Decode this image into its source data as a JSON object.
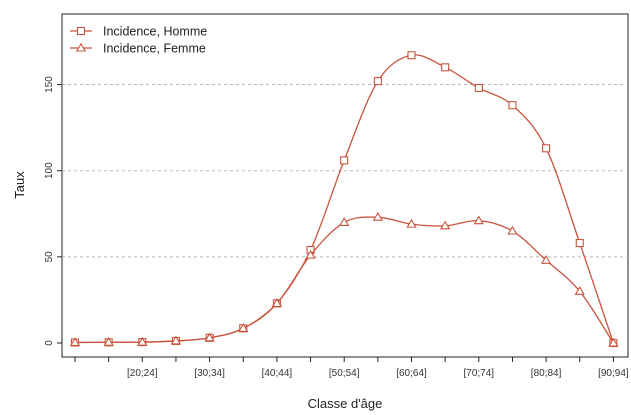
{
  "chart_data": {
    "type": "line",
    "xlabel": "Classe d'âge",
    "ylabel": "Taux",
    "ylim": [
      -5,
      183
    ],
    "yticks": [
      0,
      50,
      100,
      150
    ],
    "grid": "horizontal-dashed",
    "legend_position": "top-left",
    "colors": {
      "series": "#c8553d",
      "grid": "#b8b8b8",
      "frame": "#222222"
    },
    "x_tick_labels": [
      {
        "pos": 1,
        "label": "[20;24]"
      },
      {
        "pos": 2,
        "label": "[30;34]"
      },
      {
        "pos": 3,
        "label": "[40;44]"
      },
      {
        "pos": 4,
        "label": "[50;54]"
      },
      {
        "pos": 5,
        "label": "[60;64]"
      },
      {
        "pos": 6,
        "label": "[70;74]"
      },
      {
        "pos": 7,
        "label": "[80;84]"
      },
      {
        "pos": 8,
        "label": "[90;94]"
      }
    ],
    "x": [
      0,
      0.5,
      1,
      1.5,
      2,
      2.5,
      3,
      3.5,
      4,
      4.5,
      5,
      5.5,
      6,
      6.5,
      7,
      7.5,
      8
    ],
    "series": [
      {
        "name": "Incidence, Homme",
        "marker": "square",
        "values": [
          0.3,
          0.4,
          0.5,
          1.2,
          3,
          8.5,
          23,
          54,
          106,
          152,
          167,
          160,
          148,
          138,
          113,
          58,
          0
        ]
      },
      {
        "name": "Incidence, Femme",
        "marker": "triangle",
        "values": [
          0.3,
          0.4,
          0.5,
          1.2,
          3,
          8.5,
          23,
          51,
          70,
          73,
          69,
          68,
          71,
          65,
          48,
          30,
          0
        ]
      }
    ]
  }
}
